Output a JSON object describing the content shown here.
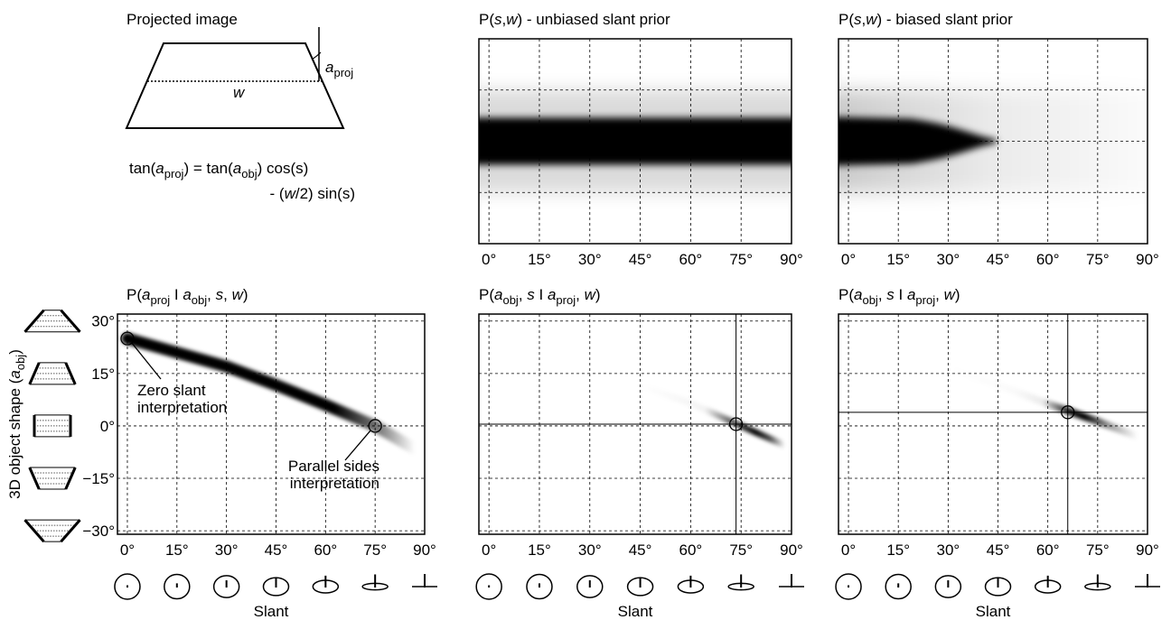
{
  "diagram": {
    "title": "Projected image",
    "w": "w",
    "angle": [
      {
        "t": "a",
        "s": "italic"
      },
      {
        "t": "proj",
        "s": "sub"
      }
    ],
    "equation": [
      [
        {
          "t": "tan(",
          "s": "normal"
        },
        {
          "t": "a",
          "s": "italic"
        },
        {
          "t": "proj",
          "s": "sub"
        },
        {
          "t": ") = tan(",
          "s": "normal"
        },
        {
          "t": "a",
          "s": "italic"
        },
        {
          "t": "obj",
          "s": "sub"
        },
        {
          "t": ") cos(s)",
          "s": "normal"
        }
      ],
      [
        {
          "t": "- (",
          "s": "normal"
        },
        {
          "t": "w",
          "s": "italic"
        },
        {
          "t": "/2) sin(s)",
          "s": "normal"
        }
      ]
    ]
  },
  "chart_data": [
    {
      "type": "heatmap",
      "title": [
        {
          "t": "P(",
          "s": "normal"
        },
        {
          "t": "s",
          "s": "italic"
        },
        {
          "t": ",",
          "s": "normal"
        },
        {
          "t": "w",
          "s": "italic"
        },
        {
          "t": ") - unbiased slant prior",
          "s": "normal"
        }
      ],
      "xlim": [
        -3,
        90
      ],
      "xticks": [
        {
          "value": 0,
          "label": "0°"
        },
        {
          "value": 15,
          "label": "15°"
        },
        {
          "value": 30,
          "label": "30°"
        },
        {
          "value": 45,
          "label": "45°"
        },
        {
          "value": 60,
          "label": "60°"
        },
        {
          "value": 75,
          "label": "75°"
        },
        {
          "value": 90,
          "label": "90°"
        }
      ],
      "grid": true
    },
    {
      "type": "heatmap",
      "title": [
        {
          "t": "P(",
          "s": "normal"
        },
        {
          "t": "s",
          "s": "italic"
        },
        {
          "t": ",",
          "s": "normal"
        },
        {
          "t": "w",
          "s": "italic"
        },
        {
          "t": ") - biased slant prior",
          "s": "normal"
        }
      ],
      "xlim": [
        -3,
        90
      ],
      "xticks": [
        {
          "value": 0,
          "label": "0°"
        },
        {
          "value": 15,
          "label": "15°"
        },
        {
          "value": 30,
          "label": "30°"
        },
        {
          "value": 45,
          "label": "45°"
        },
        {
          "value": 60,
          "label": "60°"
        },
        {
          "value": 75,
          "label": "75°"
        },
        {
          "value": 90,
          "label": "90°"
        }
      ],
      "grid": true
    },
    {
      "type": "heatmap",
      "title": [
        {
          "t": "P(",
          "s": "normal"
        },
        {
          "t": "a",
          "s": "italic"
        },
        {
          "t": "proj",
          "s": "sub"
        },
        {
          "t": " I ",
          "s": "normal"
        },
        {
          "t": "a",
          "s": "italic"
        },
        {
          "t": "obj",
          "s": "sub"
        },
        {
          "t": ", ",
          "s": "normal"
        },
        {
          "t": "s",
          "s": "italic"
        },
        {
          "t": ", ",
          "s": "normal"
        },
        {
          "t": "w",
          "s": "italic"
        },
        {
          "t": ")",
          "s": "normal"
        }
      ],
      "xlim": [
        -3,
        90
      ],
      "ylim": [
        -31,
        32
      ],
      "xticks": [
        {
          "value": 0,
          "label": "0°"
        },
        {
          "value": 15,
          "label": "15°"
        },
        {
          "value": 30,
          "label": "30°"
        },
        {
          "value": 45,
          "label": "45°"
        },
        {
          "value": 60,
          "label": "60°"
        },
        {
          "value": 75,
          "label": "75°"
        },
        {
          "value": 90,
          "label": "90°"
        }
      ],
      "yticks": [
        {
          "value": 30,
          "label": "30°"
        },
        {
          "value": 15,
          "label": "15°"
        },
        {
          "value": 0,
          "label": "0°"
        },
        {
          "value": -15,
          "label": "−15°"
        },
        {
          "value": -30,
          "label": "−30°"
        }
      ],
      "grid": true,
      "x": [
        0,
        15,
        30,
        45,
        60,
        75,
        87
      ],
      "values": [
        25,
        21,
        17,
        11.7,
        6,
        0,
        -6.5
      ],
      "markers": [
        {
          "x": 0,
          "y": 25
        },
        {
          "x": 75,
          "y": 0
        }
      ],
      "annotations": [
        [
          "Zero slant",
          "interpretation"
        ],
        [
          "Parallel sides",
          "interpretation"
        ]
      ],
      "xlabel": "Slant",
      "ylabel": [
        {
          "t": "3D object shape (",
          "s": "normal"
        },
        {
          "t": "a",
          "s": "italic"
        },
        {
          "t": "obj",
          "s": "sub"
        },
        {
          "t": ")",
          "s": "normal"
        }
      ]
    },
    {
      "type": "heatmap",
      "title": [
        {
          "t": "P(",
          "s": "normal"
        },
        {
          "t": "a",
          "s": "italic"
        },
        {
          "t": "obj",
          "s": "sub"
        },
        {
          "t": ", ",
          "s": "normal"
        },
        {
          "t": "s",
          "s": "italic"
        },
        {
          "t": " I ",
          "s": "normal"
        },
        {
          "t": "a",
          "s": "italic"
        },
        {
          "t": "proj",
          "s": "sub"
        },
        {
          "t": ", ",
          "s": "normal"
        },
        {
          "t": "w",
          "s": "italic"
        },
        {
          "t": ")",
          "s": "normal"
        }
      ],
      "xlim": [
        -3,
        90
      ],
      "ylim": [
        -31,
        32
      ],
      "xticks": [
        {
          "value": 0,
          "label": "0°"
        },
        {
          "value": 15,
          "label": "15°"
        },
        {
          "value": 30,
          "label": "30°"
        },
        {
          "value": 45,
          "label": "45°"
        },
        {
          "value": 60,
          "label": "60°"
        },
        {
          "value": 75,
          "label": "75°"
        },
        {
          "value": 90,
          "label": "90°"
        }
      ],
      "yticks": [
        30,
        15,
        0,
        -15,
        -30
      ],
      "grid": true,
      "x": [
        45,
        60,
        75,
        88
      ],
      "values": [
        11.5,
        6.5,
        0,
        -5.5
      ],
      "markers": [
        {
          "x": 73.5,
          "y": 0.5
        }
      ],
      "crosshair": {
        "x": 73.5,
        "y": 0.5
      },
      "xlabel": "Slant"
    },
    {
      "type": "heatmap",
      "title": [
        {
          "t": "P(",
          "s": "normal"
        },
        {
          "t": "a",
          "s": "italic"
        },
        {
          "t": "obj",
          "s": "sub"
        },
        {
          "t": ", ",
          "s": "normal"
        },
        {
          "t": "s",
          "s": "italic"
        },
        {
          "t": " I ",
          "s": "normal"
        },
        {
          "t": "a",
          "s": "italic"
        },
        {
          "t": "proj",
          "s": "sub"
        },
        {
          "t": ", ",
          "s": "normal"
        },
        {
          "t": "w",
          "s": "italic"
        },
        {
          "t": ")",
          "s": "normal"
        }
      ],
      "xlim": [
        -3,
        90
      ],
      "ylim": [
        -31,
        32
      ],
      "xticks": [
        {
          "value": 0,
          "label": "0°"
        },
        {
          "value": 15,
          "label": "15°"
        },
        {
          "value": 30,
          "label": "30°"
        },
        {
          "value": 45,
          "label": "45°"
        },
        {
          "value": 60,
          "label": "60°"
        },
        {
          "value": 75,
          "label": "75°"
        },
        {
          "value": 90,
          "label": "90°"
        }
      ],
      "yticks": [
        30,
        15,
        0,
        -15,
        -30
      ],
      "grid": true,
      "x": [
        30,
        45,
        60,
        75,
        87
      ],
      "values": [
        16.5,
        11.7,
        6.3,
        1.3,
        -3
      ],
      "markers": [
        {
          "x": 66,
          "y": 3.9
        }
      ],
      "crosshair": {
        "x": 66,
        "y": 3.9
      },
      "xlabel": "Slant"
    }
  ]
}
